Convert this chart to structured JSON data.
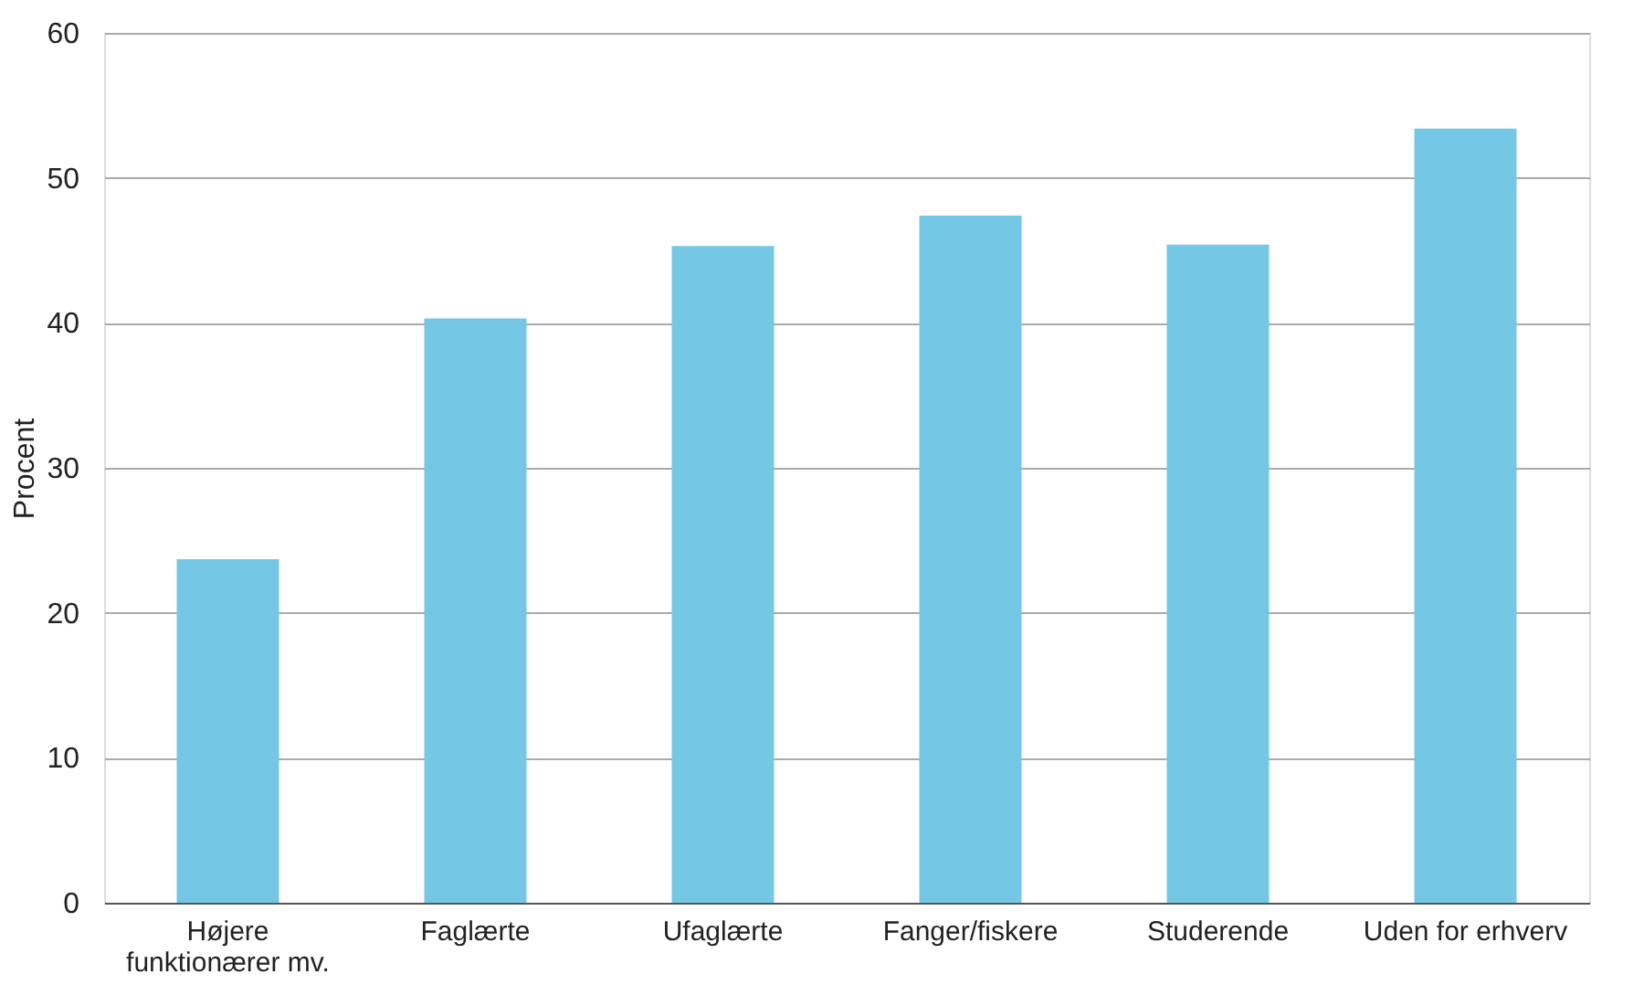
{
  "chart_data": {
    "type": "bar",
    "ylabel": "Procent",
    "categories": [
      "Højere\nfunktionærer mv.",
      "Faglærte",
      "Ufaglærte",
      "Fanger/fiskere",
      "Studerende",
      "Uden for erhverv"
    ],
    "values": [
      23.7,
      40.3,
      45.3,
      47.4,
      45.4,
      53.4
    ],
    "color": "#74c7e5",
    "ylim": [
      0,
      60
    ],
    "yticks": [
      0,
      10,
      20,
      30,
      40,
      50,
      60
    ],
    "grid": "y"
  }
}
